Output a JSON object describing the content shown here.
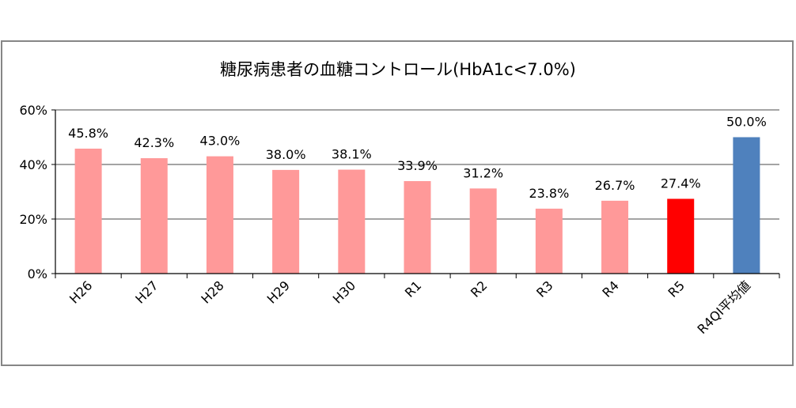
{
  "chart_data": {
    "type": "bar",
    "title": "糖尿病患者の血糖コントロール(HbA1c<7.0%)",
    "xlabel": "",
    "ylabel": "",
    "categories": [
      "H26",
      "H27",
      "H28",
      "H29",
      "H30",
      "R1",
      "R2",
      "R3",
      "R4",
      "R5",
      "R4QI平均値"
    ],
    "values": [
      45.8,
      42.3,
      43.0,
      38.0,
      38.1,
      33.9,
      31.2,
      23.8,
      26.7,
      27.4,
      50.0
    ],
    "data_labels": [
      "45.8%",
      "42.3%",
      "43.0%",
      "38.0%",
      "38.1%",
      "33.9%",
      "31.2%",
      "23.8%",
      "26.7%",
      "27.4%",
      "50.0%"
    ],
    "ylim": [
      0,
      60
    ],
    "yticks": [
      0,
      20,
      40,
      60
    ],
    "ytick_labels": [
      "0%",
      "20%",
      "40%",
      "60%"
    ],
    "grid": true,
    "legend": "none",
    "bar_colors": [
      "#FF9999",
      "#FF9999",
      "#FF9999",
      "#FF9999",
      "#FF9999",
      "#FF9999",
      "#FF9999",
      "#FF9999",
      "#FF9999",
      "#FF0000",
      "#4F81BD"
    ],
    "colors": {
      "gridline": "#868686",
      "frame_border": "#868686",
      "axis": "#000000"
    }
  }
}
